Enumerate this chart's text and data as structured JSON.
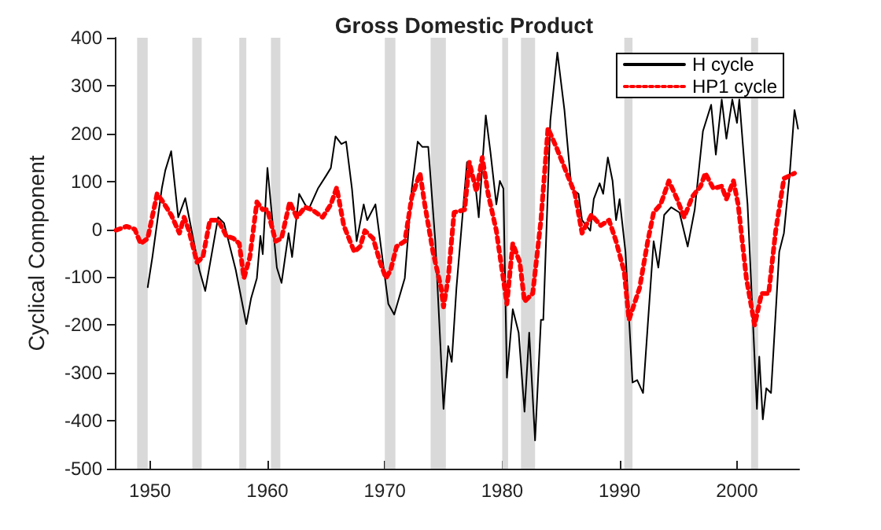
{
  "chart_data": {
    "type": "line",
    "title": "Gross Domestic Product",
    "ylabel": "Cyclical Component",
    "xlim": [
      1947,
      2005.3
    ],
    "xticks": [
      1950,
      1960,
      1970,
      1980,
      1990,
      2000
    ],
    "ylim": [
      -500,
      400
    ],
    "yticks": [
      -500,
      -400,
      -300,
      -200,
      -100,
      0,
      100,
      200,
      300,
      400
    ],
    "grid": false,
    "legend": "top right",
    "bands": [
      {
        "axis": "x",
        "from": 1948.9,
        "to": 1949.8,
        "color": "#d9d9d9"
      },
      {
        "axis": "x",
        "from": 1953.6,
        "to": 1954.4,
        "color": "#d9d9d9"
      },
      {
        "axis": "x",
        "from": 1957.6,
        "to": 1958.2,
        "color": "#d9d9d9"
      },
      {
        "axis": "x",
        "from": 1960.3,
        "to": 1961.1,
        "color": "#d9d9d9"
      },
      {
        "axis": "x",
        "from": 1970.0,
        "to": 1970.9,
        "color": "#d9d9d9"
      },
      {
        "axis": "x",
        "from": 1973.9,
        "to": 1975.2,
        "color": "#d9d9d9"
      },
      {
        "axis": "x",
        "from": 1980.0,
        "to": 1980.5,
        "color": "#d9d9d9"
      },
      {
        "axis": "x",
        "from": 1981.6,
        "to": 1982.8,
        "color": "#d9d9d9"
      },
      {
        "axis": "x",
        "from": 1990.4,
        "to": 1991.1,
        "color": "#d9d9d9"
      },
      {
        "axis": "x",
        "from": 2001.2,
        "to": 2001.8,
        "color": "#d9d9d9"
      }
    ],
    "series": [
      {
        "name": "H cycle",
        "color": "#000000",
        "line_style": "solid",
        "x": [
          1949.8,
          1950.2,
          1951.0,
          1951.3,
          1951.8,
          1952.4,
          1953.0,
          1954.2,
          1954.7,
          1955.8,
          1956.3,
          1957.3,
          1958.2,
          1958.6,
          1959.1,
          1959.4,
          1959.6,
          1960.0,
          1960.8,
          1961.2,
          1961.8,
          1962.1,
          1962.7,
          1963.2,
          1963.5,
          1964.3,
          1965.0,
          1965.4,
          1965.8,
          1966.3,
          1966.7,
          1967.2,
          1967.6,
          1968.2,
          1968.5,
          1969.2,
          1969.9,
          1970.3,
          1970.8,
          1971.7,
          1972.3,
          1972.8,
          1973.2,
          1973.7,
          1974.3,
          1975.0,
          1975.4,
          1975.7,
          1976.1,
          1977.0,
          1977.7,
          1978.0,
          1978.6,
          1979.0,
          1979.5,
          1979.8,
          1980.1,
          1980.4,
          1980.9,
          1981.4,
          1981.9,
          1982.3,
          1982.8,
          1983.3,
          1983.5,
          1984.1,
          1984.7,
          1985.3,
          1985.9,
          1986.5,
          1986.8,
          1987.5,
          1987.8,
          1988.3,
          1988.6,
          1989.0,
          1989.4,
          1989.7,
          1990.0,
          1990.5,
          1991.1,
          1991.5,
          1992.0,
          1992.4,
          1992.9,
          1993.3,
          1993.8,
          1994.4,
          1995.1,
          1995.8,
          1996.4,
          1997.1,
          1997.8,
          1998.2,
          1998.7,
          1999.1,
          1999.6,
          2000.0,
          2000.2,
          2000.9,
          2001.7,
          2001.9,
          2002.2,
          2002.5,
          2002.9,
          2003.6,
          2004.0,
          2004.5,
          2004.9,
          2005.2
        ],
        "values": [
          -121,
          -58,
          85,
          123,
          163,
          25,
          65,
          -85,
          -129,
          25,
          13,
          -85,
          -198,
          -145,
          -102,
          -14,
          -52,
          128,
          -80,
          -112,
          -8,
          -58,
          74,
          52,
          41,
          85,
          112,
          128,
          194,
          178,
          183,
          85,
          -25,
          52,
          19,
          52,
          -80,
          -156,
          -178,
          -102,
          85,
          183,
          172,
          172,
          -25,
          -375,
          -244,
          -277,
          -123,
          140,
          96,
          25,
          238,
          161,
          52,
          101,
          85,
          -310,
          -167,
          -216,
          -381,
          -216,
          -441,
          -189,
          -189,
          227,
          369,
          249,
          85,
          74,
          19,
          -3,
          63,
          96,
          74,
          150,
          101,
          19,
          63,
          -47,
          -320,
          -315,
          -342,
          -200,
          -25,
          -80,
          30,
          46,
          35,
          -36,
          41,
          205,
          260,
          156,
          271,
          189,
          271,
          222,
          271,
          52,
          -375,
          -266,
          -397,
          -332,
          -342,
          -47,
          -8,
          118,
          249,
          210
        ]
      },
      {
        "name": "HP1 cycle",
        "color": "#ff0000",
        "line_style": "dotted",
        "x": [
          1947.1,
          1948.0,
          1948.7,
          1949.2,
          1949.8,
          1950.6,
          1951.1,
          1951.8,
          1952.5,
          1952.9,
          1953.3,
          1954.0,
          1954.5,
          1955.1,
          1955.8,
          1956.5,
          1957.1,
          1957.6,
          1958.0,
          1958.5,
          1959.1,
          1959.6,
          1960.0,
          1960.7,
          1961.2,
          1961.9,
          1962.5,
          1963.2,
          1963.8,
          1964.7,
          1965.4,
          1965.9,
          1966.5,
          1967.4,
          1967.9,
          1968.3,
          1969.0,
          1969.6,
          1970.1,
          1970.5,
          1971.0,
          1971.7,
          1972.3,
          1973.0,
          1973.4,
          1974.1,
          1974.8,
          1975.0,
          1975.4,
          1975.9,
          1976.8,
          1977.2,
          1977.8,
          1978.3,
          1978.8,
          1979.5,
          1980.4,
          1980.9,
          1981.5,
          1981.9,
          1982.6,
          1983.3,
          1983.9,
          1984.6,
          1985.5,
          1986.2,
          1986.8,
          1987.6,
          1988.4,
          1989.1,
          1989.7,
          1990.4,
          1990.8,
          1991.7,
          1992.4,
          1992.9,
          1993.5,
          1994.2,
          1994.9,
          1995.5,
          1996.2,
          1996.9,
          1997.3,
          1998.0,
          1998.7,
          1999.1,
          1999.7,
          2000.1,
          2000.8,
          2001.5,
          2002.1,
          2002.7,
          2003.3,
          2004.0,
          2004.9
        ],
        "values": [
          -2,
          6,
          0,
          -30,
          -19,
          74,
          57,
          30,
          -8,
          25,
          -2,
          -69,
          -58,
          19,
          19,
          -14,
          -19,
          -30,
          -102,
          -58,
          57,
          41,
          41,
          -25,
          -19,
          57,
          25,
          46,
          41,
          25,
          52,
          87,
          8,
          -47,
          -36,
          -3,
          -19,
          -69,
          -102,
          -85,
          -36,
          -25,
          68,
          117,
          52,
          -47,
          -123,
          -162,
          -102,
          35,
          41,
          140,
          79,
          150,
          74,
          -3,
          -156,
          -30,
          -69,
          -151,
          -134,
          19,
          211,
          172,
          117,
          74,
          -8,
          30,
          8,
          19,
          -25,
          -90,
          -189,
          -123,
          -25,
          35,
          52,
          101,
          63,
          25,
          68,
          90,
          117,
          85,
          90,
          63,
          101,
          52,
          -102,
          -200,
          -134,
          -134,
          -3,
          106,
          117
        ]
      }
    ]
  }
}
